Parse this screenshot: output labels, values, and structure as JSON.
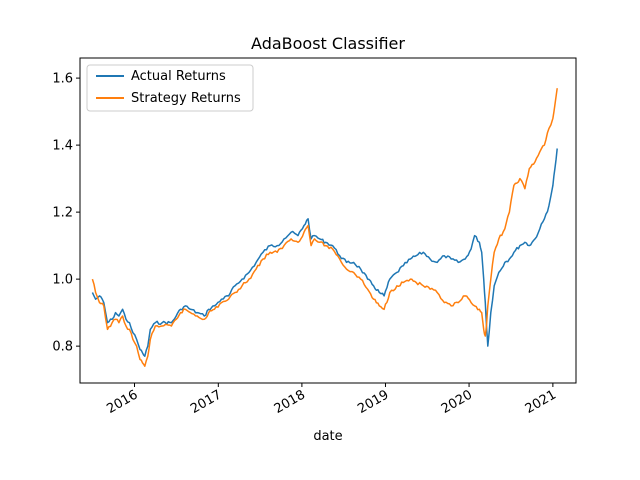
{
  "chart_data": {
    "type": "line",
    "title": "AdaBoost Classifier",
    "xlabel": "date",
    "ylabel": "",
    "xlim": [
      "2015-05-08",
      "2021-04-12"
    ],
    "ylim": [
      0.69,
      1.66
    ],
    "x_ticks": [
      {
        "date": "2016-01-01",
        "label": "2016"
      },
      {
        "date": "2017-01-01",
        "label": "2017"
      },
      {
        "date": "2018-01-01",
        "label": "2018"
      },
      {
        "date": "2019-01-01",
        "label": "2019"
      },
      {
        "date": "2020-01-01",
        "label": "2020"
      },
      {
        "date": "2021-01-01",
        "label": "2021"
      }
    ],
    "y_ticks": [
      0.8,
      1.0,
      1.2,
      1.4,
      1.6
    ],
    "y_tick_labels": [
      "0.8",
      "1.0",
      "1.2",
      "1.4",
      "1.6"
    ],
    "grid": false,
    "legend_position": "top-left",
    "series": [
      {
        "name": "Actual Returns",
        "color": "#1f77b4",
        "x": [
          "2015-07-01",
          "2015-07-15",
          "2015-08-01",
          "2015-08-20",
          "2015-09-05",
          "2015-09-25",
          "2015-10-10",
          "2015-10-25",
          "2015-11-10",
          "2015-11-25",
          "2015-12-10",
          "2015-12-25",
          "2016-01-10",
          "2016-01-25",
          "2016-02-05",
          "2016-02-15",
          "2016-02-28",
          "2016-03-10",
          "2016-04-01",
          "2016-05-01",
          "2016-06-10",
          "2016-07-01",
          "2016-07-20",
          "2016-08-10",
          "2016-09-01",
          "2016-10-01",
          "2016-11-01",
          "2016-11-20",
          "2016-12-15",
          "2017-01-15",
          "2017-02-15",
          "2017-03-15",
          "2017-04-15",
          "2017-05-15",
          "2017-06-15",
          "2017-07-15",
          "2017-08-15",
          "2017-09-15",
          "2017-10-15",
          "2017-11-15",
          "2017-12-15",
          "2018-01-10",
          "2018-01-28",
          "2018-02-10",
          "2018-02-25",
          "2018-03-20",
          "2018-04-15",
          "2018-05-15",
          "2018-06-15",
          "2018-07-15",
          "2018-08-15",
          "2018-09-15",
          "2018-10-15",
          "2018-11-10",
          "2018-12-05",
          "2018-12-26",
          "2019-01-20",
          "2019-02-20",
          "2019-03-20",
          "2019-04-20",
          "2019-05-15",
          "2019-06-15",
          "2019-07-15",
          "2019-08-15",
          "2019-09-15",
          "2019-10-15",
          "2019-11-15",
          "2019-12-15",
          "2020-01-10",
          "2020-01-25",
          "2020-02-15",
          "2020-02-25",
          "2020-03-05",
          "2020-03-12",
          "2020-03-18",
          "2020-03-23",
          "2020-04-05",
          "2020-04-20",
          "2020-05-10",
          "2020-06-05",
          "2020-06-25",
          "2020-07-15",
          "2020-08-10",
          "2020-09-01",
          "2020-09-20",
          "2020-10-15",
          "2020-11-05",
          "2020-11-25",
          "2020-12-15",
          "2021-01-01",
          "2021-01-10",
          "2021-01-20"
        ],
        "values": [
          0.96,
          0.94,
          0.95,
          0.93,
          0.87,
          0.88,
          0.9,
          0.89,
          0.91,
          0.88,
          0.87,
          0.84,
          0.82,
          0.79,
          0.78,
          0.77,
          0.8,
          0.85,
          0.87,
          0.87,
          0.87,
          0.89,
          0.91,
          0.92,
          0.91,
          0.9,
          0.89,
          0.91,
          0.92,
          0.94,
          0.95,
          0.98,
          1.0,
          1.02,
          1.05,
          1.08,
          1.1,
          1.1,
          1.12,
          1.14,
          1.13,
          1.16,
          1.18,
          1.12,
          1.13,
          1.12,
          1.11,
          1.1,
          1.07,
          1.05,
          1.05,
          1.03,
          1.0,
          0.98,
          0.96,
          0.95,
          1.0,
          1.02,
          1.04,
          1.06,
          1.07,
          1.08,
          1.06,
          1.05,
          1.07,
          1.06,
          1.05,
          1.06,
          1.09,
          1.13,
          1.11,
          1.08,
          1.0,
          0.93,
          0.85,
          0.8,
          0.9,
          0.98,
          1.02,
          1.05,
          1.06,
          1.08,
          1.1,
          1.11,
          1.1,
          1.12,
          1.15,
          1.18,
          1.22,
          1.28,
          1.33,
          1.39
        ]
      },
      {
        "name": "Strategy Returns",
        "color": "#ff7f0e",
        "x": [
          "2015-07-01",
          "2015-07-15",
          "2015-08-01",
          "2015-08-20",
          "2015-09-05",
          "2015-09-25",
          "2015-10-10",
          "2015-10-25",
          "2015-11-10",
          "2015-11-25",
          "2015-12-10",
          "2015-12-25",
          "2016-01-10",
          "2016-01-25",
          "2016-02-05",
          "2016-02-15",
          "2016-02-28",
          "2016-03-10",
          "2016-04-01",
          "2016-05-01",
          "2016-06-10",
          "2016-07-01",
          "2016-07-20",
          "2016-08-10",
          "2016-09-01",
          "2016-10-01",
          "2016-11-01",
          "2016-11-20",
          "2016-12-15",
          "2017-01-15",
          "2017-02-15",
          "2017-03-15",
          "2017-04-15",
          "2017-05-15",
          "2017-06-15",
          "2017-07-15",
          "2017-08-15",
          "2017-09-15",
          "2017-10-15",
          "2017-11-15",
          "2017-12-15",
          "2018-01-10",
          "2018-01-28",
          "2018-02-10",
          "2018-02-25",
          "2018-03-20",
          "2018-04-15",
          "2018-05-15",
          "2018-06-15",
          "2018-07-15",
          "2018-08-15",
          "2018-09-15",
          "2018-10-15",
          "2018-11-10",
          "2018-12-05",
          "2018-12-26",
          "2019-01-20",
          "2019-02-20",
          "2019-03-20",
          "2019-04-20",
          "2019-05-15",
          "2019-06-15",
          "2019-07-15",
          "2019-08-15",
          "2019-09-15",
          "2019-10-15",
          "2019-11-15",
          "2019-12-15",
          "2020-01-10",
          "2020-01-25",
          "2020-02-15",
          "2020-02-25",
          "2020-03-05",
          "2020-03-12",
          "2020-03-18",
          "2020-03-23",
          "2020-04-05",
          "2020-04-20",
          "2020-05-10",
          "2020-06-05",
          "2020-06-25",
          "2020-07-15",
          "2020-08-10",
          "2020-09-01",
          "2020-09-20",
          "2020-10-15",
          "2020-11-05",
          "2020-11-25",
          "2020-12-15",
          "2021-01-01",
          "2021-01-10",
          "2021-01-20"
        ],
        "values": [
          1.0,
          0.96,
          0.93,
          0.92,
          0.85,
          0.87,
          0.88,
          0.87,
          0.89,
          0.86,
          0.85,
          0.82,
          0.8,
          0.76,
          0.75,
          0.74,
          0.77,
          0.82,
          0.86,
          0.86,
          0.86,
          0.88,
          0.9,
          0.91,
          0.9,
          0.89,
          0.88,
          0.9,
          0.91,
          0.93,
          0.94,
          0.96,
          0.98,
          1.0,
          1.03,
          1.06,
          1.08,
          1.08,
          1.1,
          1.12,
          1.11,
          1.14,
          1.16,
          1.1,
          1.12,
          1.11,
          1.1,
          1.09,
          1.06,
          1.03,
          1.02,
          1.0,
          0.97,
          0.94,
          0.92,
          0.91,
          0.96,
          0.98,
          0.99,
          1.0,
          0.99,
          0.98,
          0.97,
          0.96,
          0.93,
          0.92,
          0.93,
          0.95,
          0.93,
          0.92,
          0.91,
          0.9,
          0.85,
          0.83,
          0.87,
          0.92,
          1.0,
          1.08,
          1.12,
          1.15,
          1.2,
          1.28,
          1.3,
          1.27,
          1.33,
          1.35,
          1.38,
          1.4,
          1.45,
          1.48,
          1.52,
          1.57
        ]
      }
    ]
  }
}
